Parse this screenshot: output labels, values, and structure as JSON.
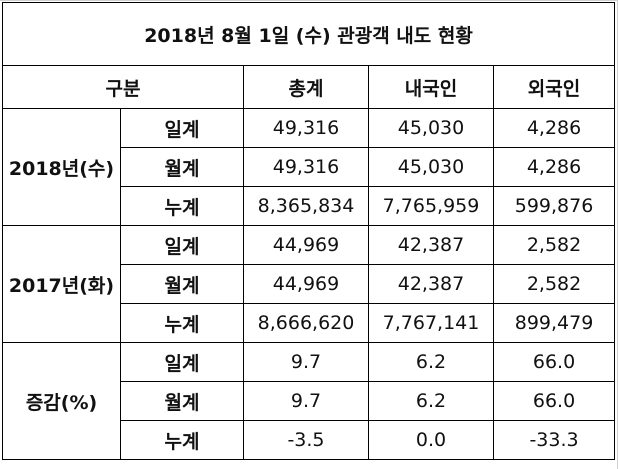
{
  "title": "2018년 8월 1일 (수) 관광객 내도 현황",
  "headers": {
    "category": "구분",
    "total": "총계",
    "domestic": "내국인",
    "foreign": "외국인"
  },
  "groups": [
    {
      "label": "2018년(수)",
      "rows": [
        {
          "sub": "일계",
          "total": "49,316",
          "domestic": "45,030",
          "foreign": "4,286"
        },
        {
          "sub": "월계",
          "total": "49,316",
          "domestic": "45,030",
          "foreign": "4,286"
        },
        {
          "sub": "누계",
          "total": "8,365,834",
          "domestic": "7,765,959",
          "foreign": "599,876"
        }
      ]
    },
    {
      "label": "2017년(화)",
      "rows": [
        {
          "sub": "일계",
          "total": "44,969",
          "domestic": "42,387",
          "foreign": "2,582"
        },
        {
          "sub": "월계",
          "total": "44,969",
          "domestic": "42,387",
          "foreign": "2,582"
        },
        {
          "sub": "누계",
          "total": "8,666,620",
          "domestic": "7,767,141",
          "foreign": "899,479"
        }
      ]
    },
    {
      "label": "증감(%)",
      "rows": [
        {
          "sub": "일계",
          "total": "9.7",
          "domestic": "6.2",
          "foreign": "66.0"
        },
        {
          "sub": "월계",
          "total": "9.7",
          "domestic": "6.2",
          "foreign": "66.0"
        },
        {
          "sub": "누계",
          "total": "-3.5",
          "domestic": "0.0",
          "foreign": "-33.3"
        }
      ]
    }
  ]
}
